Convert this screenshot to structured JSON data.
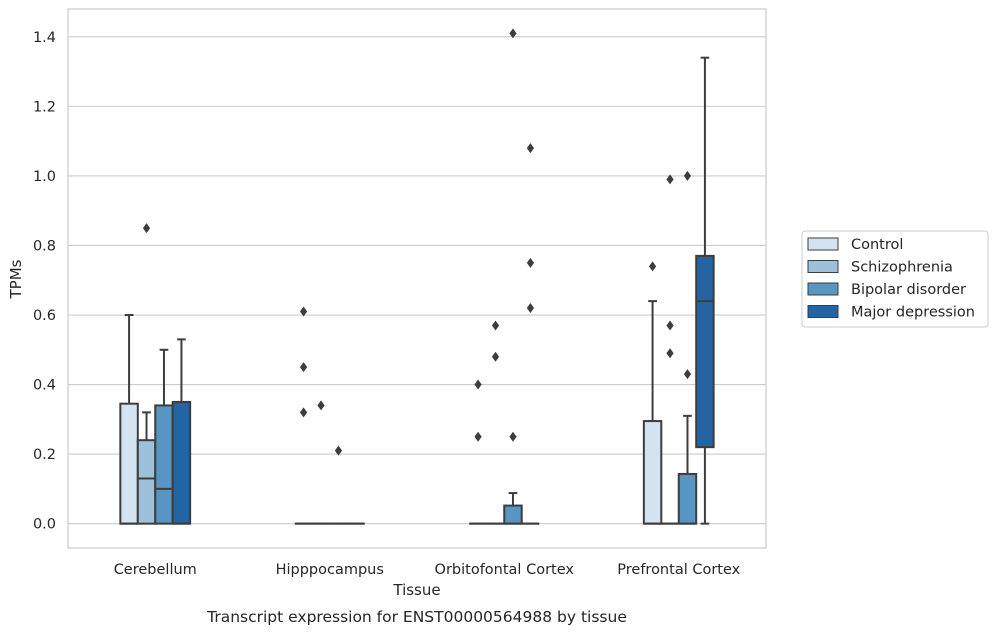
{
  "caption": "Transcript expression for ENST00000564988 by tissue",
  "chart_data": {
    "type": "box",
    "xlabel": "Tissue",
    "ylabel": "TPMs",
    "ylim": [
      -0.07,
      1.48
    ],
    "yticks": [
      "0.0",
      "0.2",
      "0.4",
      "0.6",
      "0.8",
      "1.0",
      "1.2",
      "1.4"
    ],
    "grid": "horizontal",
    "legend_position": "right",
    "categories": [
      "Cerebellum",
      "Hipppocampus",
      "Orbitofontal Cortex",
      "Prefrontal Cortex"
    ],
    "series": [
      {
        "name": "Control",
        "color": "#d4e3f0",
        "boxes": [
          {
            "q1": 0.0,
            "median": 0.0,
            "q3": 0.345,
            "whisker_low": 0.0,
            "whisker_high": 0.6,
            "outliers": []
          },
          {
            "q1": 0.0,
            "median": 0.0,
            "q3": 0.0,
            "whisker_low": 0.0,
            "whisker_high": 0.0,
            "outliers": [
              0.32,
              0.45,
              0.61
            ]
          },
          {
            "q1": 0.0,
            "median": 0.0,
            "q3": 0.0,
            "whisker_low": 0.0,
            "whisker_high": 0.0,
            "outliers": [
              0.25,
              0.4
            ]
          },
          {
            "q1": 0.0,
            "median": 0.0,
            "q3": 0.295,
            "whisker_low": 0.0,
            "whisker_high": 0.64,
            "outliers": [
              0.74
            ]
          }
        ]
      },
      {
        "name": "Schizophrenia",
        "color": "#9dc1db",
        "boxes": [
          {
            "q1": 0.0,
            "median": 0.13,
            "q3": 0.24,
            "whisker_low": 0.0,
            "whisker_high": 0.32,
            "outliers": [
              0.85
            ]
          },
          {
            "q1": 0.0,
            "median": 0.0,
            "q3": 0.0,
            "whisker_low": 0.0,
            "whisker_high": 0.0,
            "outliers": [
              0.34
            ]
          },
          {
            "q1": 0.0,
            "median": 0.0,
            "q3": 0.0,
            "whisker_low": 0.0,
            "whisker_high": 0.0,
            "outliers": [
              0.48,
              0.57
            ]
          },
          {
            "q1": 0.0,
            "median": 0.0,
            "q3": 0.0,
            "whisker_low": 0.0,
            "whisker_high": 0.0,
            "outliers": [
              0.49,
              0.57,
              0.99
            ]
          }
        ]
      },
      {
        "name": "Bipolar disorder",
        "color": "#5795c2",
        "boxes": [
          {
            "q1": 0.0,
            "median": 0.1,
            "q3": 0.34,
            "whisker_low": 0.0,
            "whisker_high": 0.5,
            "outliers": []
          },
          {
            "q1": 0.0,
            "median": 0.0,
            "q3": 0.0,
            "whisker_low": 0.0,
            "whisker_high": 0.0,
            "outliers": [
              0.21
            ]
          },
          {
            "q1": 0.0,
            "median": 0.0,
            "q3": 0.052,
            "whisker_low": 0.0,
            "whisker_high": 0.088,
            "outliers": [
              0.25,
              1.41
            ]
          },
          {
            "q1": 0.0,
            "median": 0.0,
            "q3": 0.143,
            "whisker_low": 0.0,
            "whisker_high": 0.31,
            "outliers": [
              0.43,
              1.0
            ]
          }
        ]
      },
      {
        "name": "Major depression",
        "color": "#2464a3",
        "boxes": [
          {
            "q1": 0.0,
            "median": 0.0,
            "q3": 0.35,
            "whisker_low": 0.0,
            "whisker_high": 0.53,
            "outliers": []
          },
          {
            "q1": 0.0,
            "median": 0.0,
            "q3": 0.0,
            "whisker_low": 0.0,
            "whisker_high": 0.0,
            "outliers": []
          },
          {
            "q1": 0.0,
            "median": 0.0,
            "q3": 0.0,
            "whisker_low": 0.0,
            "whisker_high": 0.0,
            "outliers": [
              0.62,
              0.75,
              1.08
            ]
          },
          {
            "q1": 0.22,
            "median": 0.64,
            "q3": 0.77,
            "whisker_low": 0.0,
            "whisker_high": 1.34,
            "outliers": []
          }
        ]
      }
    ]
  }
}
